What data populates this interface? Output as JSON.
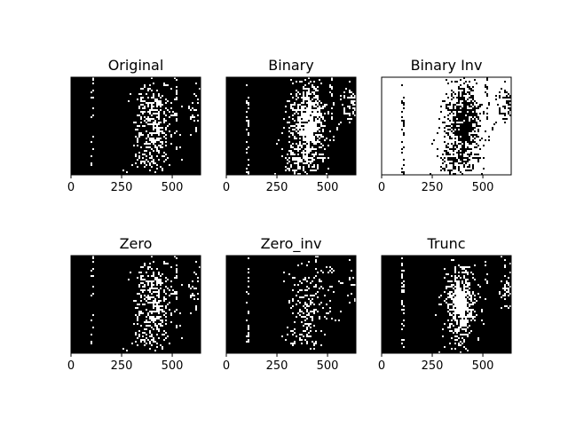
{
  "chart_data": [
    {
      "type": "heatmap",
      "title": "Original",
      "xticks": [
        0,
        250,
        500
      ],
      "xlim": [
        0,
        640
      ],
      "ylim": [
        0,
        480
      ],
      "yticks": [],
      "fill": "#000000",
      "ink": "#ffffff",
      "pattern": "original"
    },
    {
      "type": "heatmap",
      "title": "Binary",
      "xticks": [
        0,
        250,
        500
      ],
      "xlim": [
        0,
        640
      ],
      "ylim": [
        0,
        480
      ],
      "yticks": [],
      "fill": "#000000",
      "ink": "#ffffff",
      "pattern": "binary"
    },
    {
      "type": "heatmap",
      "title": "Binary Inv",
      "xticks": [
        0,
        250,
        500
      ],
      "xlim": [
        0,
        640
      ],
      "ylim": [
        0,
        480
      ],
      "yticks": [],
      "fill": "#ffffff",
      "ink": "#000000",
      "pattern": "binary"
    },
    {
      "type": "heatmap",
      "title": "Zero",
      "xticks": [
        0,
        250,
        500
      ],
      "xlim": [
        0,
        640
      ],
      "ylim": [
        0,
        480
      ],
      "yticks": [],
      "fill": "#000000",
      "ink": "#ffffff",
      "pattern": "original"
    },
    {
      "type": "heatmap",
      "title": "Zero_inv",
      "xticks": [
        0,
        250,
        500
      ],
      "xlim": [
        0,
        640
      ],
      "ylim": [
        0,
        480
      ],
      "yticks": [],
      "fill": "#000000",
      "ink": "#ffffff",
      "pattern": "zeroinv"
    },
    {
      "type": "heatmap",
      "title": "Trunc",
      "xticks": [
        0,
        250,
        500
      ],
      "xlim": [
        0,
        640
      ],
      "ylim": [
        0,
        480
      ],
      "yticks": [],
      "fill": "#000000",
      "ink": "#ffffff",
      "pattern": "trunc"
    }
  ]
}
